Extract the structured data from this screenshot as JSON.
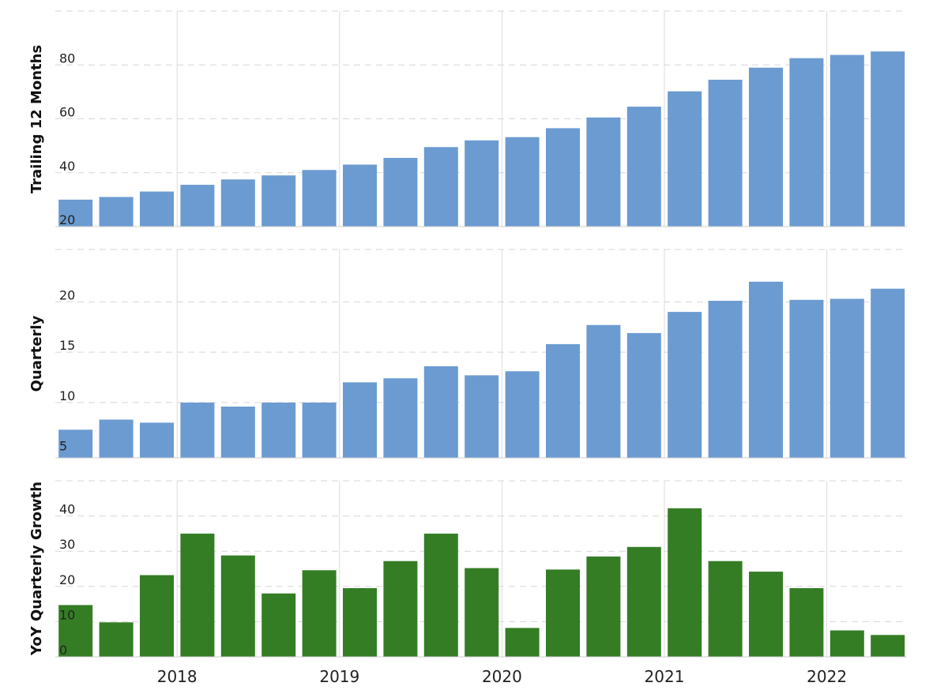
{
  "chart_data": [
    {
      "type": "bar",
      "ylabel": "Trailing 12 Months",
      "ylim": [
        20,
        100
      ],
      "yticks": [
        20,
        40,
        60,
        80
      ],
      "color": "#6b9bd1",
      "values": [
        30,
        31,
        33,
        35.5,
        37.5,
        39,
        41,
        43,
        45.5,
        49.5,
        52,
        53.2,
        56.5,
        60.5,
        64.5,
        70.2,
        74.5,
        79,
        82.5,
        83.7,
        85
      ]
    },
    {
      "type": "bar",
      "ylabel": "Quarterly",
      "ylim": [
        4.5,
        25.2
      ],
      "yticks": [
        5,
        10,
        15,
        20
      ],
      "color": "#6b9bd1",
      "values": [
        7.3,
        8.3,
        8,
        10,
        9.6,
        10,
        10,
        12,
        12.4,
        13.6,
        12.7,
        13.1,
        15.8,
        17.7,
        16.9,
        19,
        20.1,
        22,
        20.2,
        20.3,
        21.3
      ]
    },
    {
      "type": "bar",
      "ylabel": "YoY Quarterly Growth",
      "ylim": [
        0,
        50
      ],
      "yticks": [
        0,
        10,
        20,
        30,
        40
      ],
      "color": "#347d25",
      "values": [
        14.7,
        9.8,
        23.2,
        35,
        28.8,
        18,
        24.6,
        19.5,
        27.2,
        35,
        25.2,
        8.2,
        24.8,
        28.5,
        31.2,
        42.2,
        27.2,
        24.2,
        19.5,
        7.5,
        6.2
      ]
    }
  ],
  "x_axis": {
    "labels": [
      "2018",
      "2019",
      "2020",
      "2021",
      "2022"
    ],
    "label_positions": [
      2.5,
      6.5,
      10.5,
      14.5,
      18.5
    ]
  }
}
